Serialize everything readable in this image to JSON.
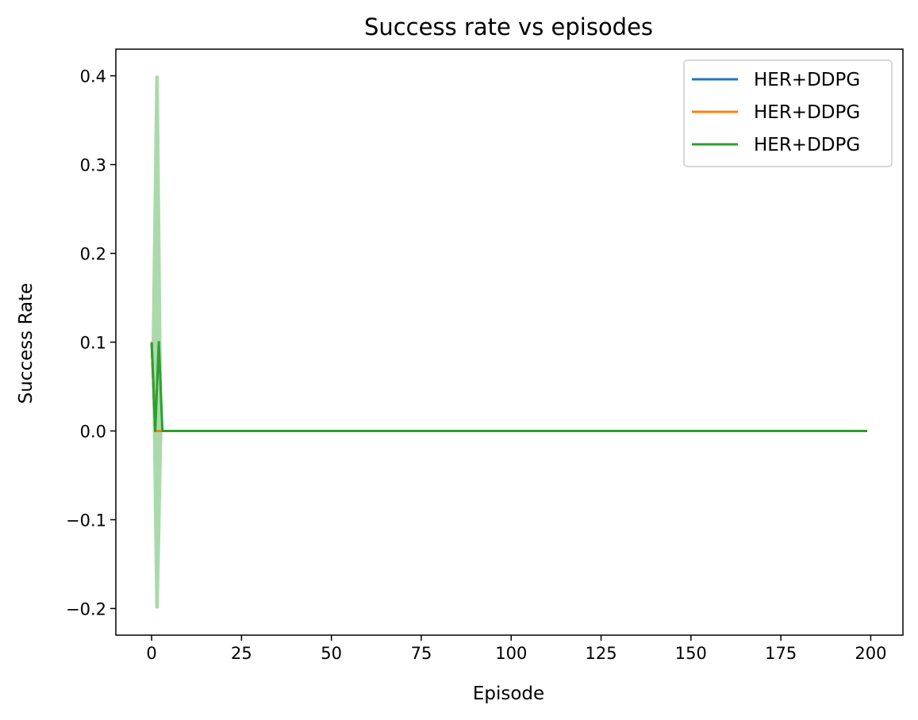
{
  "chart_data": {
    "type": "line",
    "title": "Success rate vs episodes",
    "xlabel": "Episode",
    "ylabel": "Success Rate",
    "xlim": [
      -9.95,
      208.95
    ],
    "ylim": [
      -0.23,
      0.43
    ],
    "xticks": [
      0,
      25,
      50,
      75,
      100,
      125,
      150,
      175,
      200
    ],
    "yticks": [
      -0.2,
      -0.1,
      0.0,
      0.1,
      0.2,
      0.3,
      0.4
    ],
    "xtick_labels": [
      "0",
      "25",
      "50",
      "75",
      "100",
      "125",
      "150",
      "175",
      "200"
    ],
    "ytick_labels": [
      "−0.2",
      "−0.1",
      "0.0",
      "0.1",
      "0.2",
      "0.3",
      "0.4"
    ],
    "grid": false,
    "legend": "top-right",
    "series": [
      {
        "name": "HER+DDPG",
        "color": "#1f77b4",
        "x": [
          0,
          1,
          2,
          3,
          199
        ],
        "values": [
          0.1,
          0.0,
          0.0,
          0.0,
          0.0
        ]
      },
      {
        "name": "HER+DDPG",
        "color": "#ff7f0e",
        "x": [
          0,
          1,
          2,
          3,
          199
        ],
        "values": [
          0.1,
          0.0,
          0.0,
          0.0,
          0.0
        ]
      },
      {
        "name": "HER+DDPG",
        "color": "#2ca02c",
        "x": [
          0,
          1,
          2,
          3,
          199
        ],
        "values": [
          0.1,
          0.0,
          0.1,
          0.0,
          0.0
        ],
        "band": {
          "color": "#2ca02c",
          "x": [
            0,
            1,
            2,
            3,
            199
          ],
          "upper": [
            0.1,
            0.4,
            0.4,
            0.0,
            0.0
          ],
          "lower": [
            0.1,
            -0.2,
            -0.2,
            0.0,
            0.0
          ]
        }
      }
    ]
  }
}
